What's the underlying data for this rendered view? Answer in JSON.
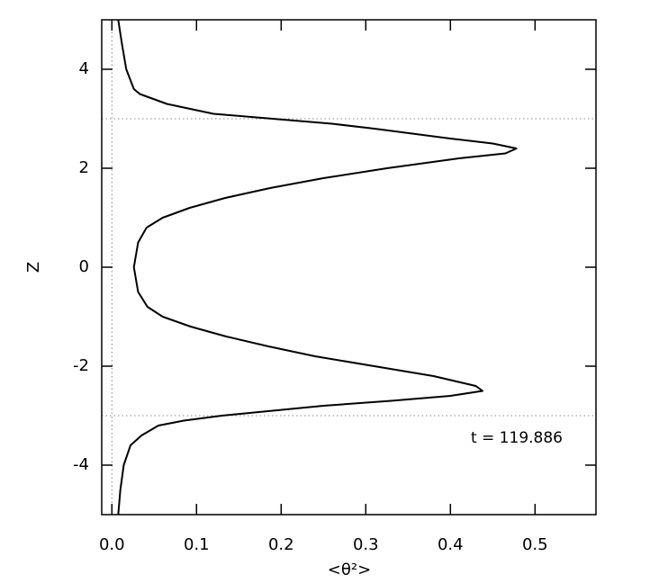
{
  "chart_data": {
    "type": "line",
    "orientation": "vertical",
    "xlabel": "<θ²>",
    "ylabel": "Z",
    "annotation": "t = 119.886",
    "xlim": [
      -0.012,
      0.572
    ],
    "ylim": [
      -5,
      5
    ],
    "xticks": [
      {
        "value": 0,
        "label": "0.0"
      },
      0.1,
      0.2,
      0.3,
      0.4,
      0.5
    ],
    "yticks": [
      -4,
      -2,
      0,
      2,
      4
    ],
    "hlines": [
      3,
      -3
    ],
    "vlines": [
      0
    ],
    "series": [
      {
        "color": "#000000",
        "x": [
          -5,
          -4.5,
          -4.0,
          -3.6,
          -3.4,
          -3.2,
          -3.1,
          -3.0,
          -2.9,
          -2.8,
          -2.7,
          -2.6,
          -2.5,
          -2.4,
          -2.2,
          -2.0,
          -1.8,
          -1.6,
          -1.4,
          -1.2,
          -1.0,
          -0.8,
          -0.5,
          0,
          0.5,
          0.8,
          1.0,
          1.2,
          1.4,
          1.6,
          1.8,
          2.0,
          2.2,
          2.3,
          2.4,
          2.5,
          2.6,
          2.8,
          2.9,
          3.0,
          3.1,
          3.3,
          3.5,
          3.6,
          4.0,
          4.5,
          5
        ],
        "values": [
          0.0075,
          0.01,
          0.014,
          0.022,
          0.035,
          0.055,
          0.085,
          0.13,
          0.19,
          0.25,
          0.33,
          0.4,
          0.438,
          0.43,
          0.38,
          0.31,
          0.24,
          0.185,
          0.135,
          0.093,
          0.06,
          0.042,
          0.031,
          0.026,
          0.031,
          0.041,
          0.06,
          0.092,
          0.134,
          0.187,
          0.25,
          0.325,
          0.41,
          0.465,
          0.478,
          0.45,
          0.4,
          0.31,
          0.26,
          0.19,
          0.12,
          0.065,
          0.033,
          0.026,
          0.017,
          0.012,
          0.0075
        ]
      }
    ]
  }
}
